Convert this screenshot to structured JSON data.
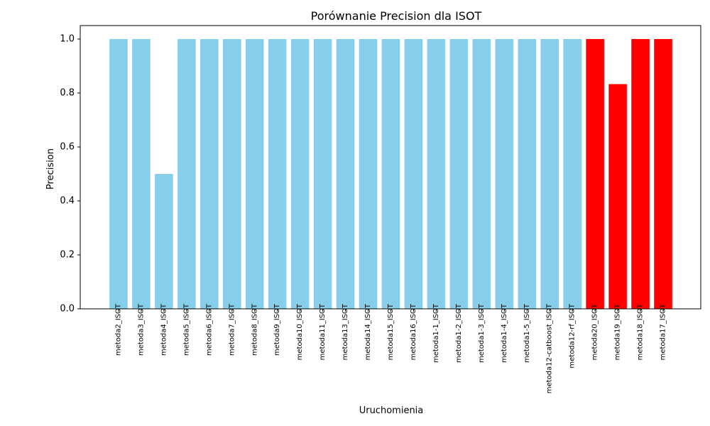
{
  "chart_data": {
    "type": "bar",
    "title": "Porównanie Precision dla ISOT",
    "xlabel": "Uruchomienia",
    "ylabel": "Precision",
    "ylim": [
      0,
      1.05
    ],
    "yticks": [
      "0.0",
      "0.2",
      "0.4",
      "0.6",
      "0.8",
      "1.0"
    ],
    "grid": false,
    "categories": [
      "metoda2_ISOT",
      "metoda3_ISOT",
      "metoda4_ISOT",
      "metoda5_ISOT",
      "metoda6_ISOT",
      "metoda7_ISOT",
      "metoda8_ISOT",
      "metoda9_ISOT",
      "metoda10_ISOT",
      "metoda11_ISOT",
      "metoda13_ISOT",
      "metoda14_ISOT",
      "metoda15_ISOT",
      "metoda16_ISOT",
      "metoda1-1_ISOT",
      "metoda1-2_ISOT",
      "metoda1-3_ISOT",
      "metoda1-4_ISOT",
      "metoda1-5_ISOT",
      "metoda12-catboost_ISOT",
      "metoda12-rf_ISOT",
      "metoda20_ISOT",
      "metoda19_ISOT",
      "metoda18_ISOT",
      "metoda17_ISOT"
    ],
    "values": [
      1.0,
      1.0,
      0.5,
      1.0,
      1.0,
      1.0,
      1.0,
      1.0,
      1.0,
      1.0,
      1.0,
      1.0,
      1.0,
      1.0,
      1.0,
      1.0,
      1.0,
      1.0,
      1.0,
      1.0,
      1.0,
      1.0,
      0.833,
      1.0,
      1.0
    ],
    "colors": {
      "default": "#87CEEB",
      "highlight": "#FF0000"
    },
    "highlighted": [
      "metoda20_ISOT",
      "metoda19_ISOT",
      "metoda18_ISOT",
      "metoda17_ISOT"
    ]
  }
}
